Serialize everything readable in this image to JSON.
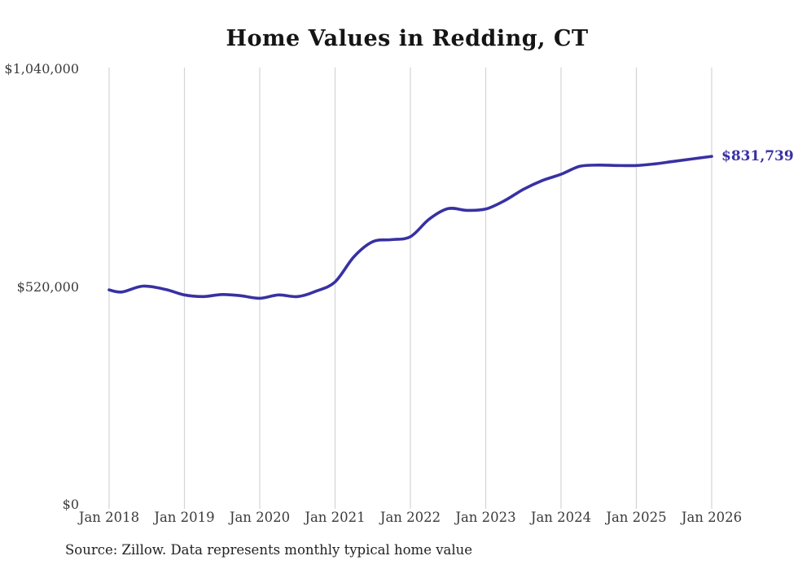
{
  "title": "Home Values in Redding, CT",
  "source_note": "Source: Zillow. Data represents monthly typical home value",
  "end_label": {
    "text": "$831,739"
  },
  "colors": {
    "line": "#3831a3",
    "end_label": "#3831a3",
    "grid": "#d4d4d4",
    "axis_text": "#3b3b3b",
    "title_text": "#151515",
    "source_text": "#222222",
    "background": "#ffffff"
  },
  "y_axis": {
    "ticks": [
      {
        "label": "$1,040,000",
        "value": 1040000
      },
      {
        "label": "$520,000",
        "value": 520000
      },
      {
        "label": "$0",
        "value": 0
      }
    ]
  },
  "x_axis": {
    "ticks": [
      {
        "label": "Jan 2018",
        "year": 2018
      },
      {
        "label": "Jan 2019",
        "year": 2019
      },
      {
        "label": "Jan 2020",
        "year": 2020
      },
      {
        "label": "Jan 2021",
        "year": 2021
      },
      {
        "label": "Jan 2022",
        "year": 2022
      },
      {
        "label": "Jan 2023",
        "year": 2023
      },
      {
        "label": "Jan 2024",
        "year": 2024
      },
      {
        "label": "Jan 2025",
        "year": 2025
      },
      {
        "label": "Jan 2026",
        "year": 2026
      }
    ]
  },
  "chart_data": {
    "type": "line",
    "title": "Home Values in Redding, CT",
    "series_name": "Typical home value (USD)",
    "unit": "USD",
    "x": [
      2018.0,
      2018.17,
      2018.45,
      2018.75,
      2019.0,
      2019.25,
      2019.5,
      2019.75,
      2020.0,
      2020.25,
      2020.5,
      2020.75,
      2021.0,
      2021.25,
      2021.5,
      2021.75,
      2022.0,
      2022.25,
      2022.5,
      2022.75,
      2023.0,
      2023.25,
      2023.5,
      2023.75,
      2024.0,
      2024.25,
      2024.5,
      2024.75,
      2025.0,
      2025.25,
      2025.5,
      2025.75,
      2026.0
    ],
    "values": [
      513000,
      508000,
      522000,
      514000,
      501000,
      497000,
      502000,
      499000,
      493000,
      501000,
      497000,
      510000,
      532000,
      592000,
      628000,
      633000,
      640000,
      682000,
      707000,
      703000,
      706000,
      726000,
      753000,
      774000,
      789000,
      808000,
      811000,
      810000,
      810000,
      814000,
      820000,
      826000,
      831739
    ],
    "x_tick_labels": [
      "Jan 2018",
      "Jan 2019",
      "Jan 2020",
      "Jan 2021",
      "Jan 2022",
      "Jan 2023",
      "Jan 2024",
      "Jan 2025",
      "Jan 2026"
    ],
    "y_tick_labels": [
      "$0",
      "$520,000",
      "$1,040,000"
    ],
    "xlim": [
      2018,
      2026
    ],
    "ylim": [
      0,
      1040000
    ],
    "grid": "vertical-only",
    "legend": "none",
    "final_value": 831739,
    "final_value_label": "$831,739"
  }
}
